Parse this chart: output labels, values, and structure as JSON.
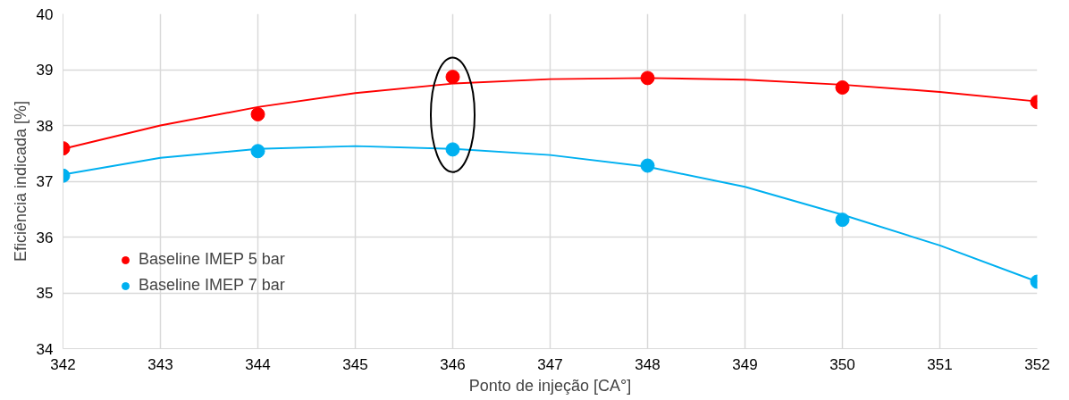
{
  "chart_data": {
    "type": "scatter",
    "xlabel": "Ponto de injeção [CA°]",
    "ylabel": "Eficiência indicada [%]",
    "xlim": [
      342,
      352
    ],
    "ylim": [
      34,
      40
    ],
    "xticks": [
      342,
      343,
      344,
      345,
      346,
      347,
      348,
      349,
      350,
      351,
      352
    ],
    "yticks": [
      34,
      35,
      36,
      37,
      38,
      39,
      40
    ],
    "grid": true,
    "legend": "bottom left",
    "series": [
      {
        "name": "Baseline IMEP 5 bar",
        "marker": "circle",
        "color": "#ff0000",
        "x": [
          342,
          344,
          346,
          348,
          350,
          352
        ],
        "values": [
          37.59,
          38.2,
          38.87,
          38.85,
          38.68,
          38.42
        ]
      },
      {
        "name": "Baseline IMEP 7 bar",
        "marker": "circle",
        "color": "#00b0f0",
        "x": [
          342,
          344,
          346,
          348,
          350,
          352
        ],
        "values": [
          37.1,
          37.54,
          37.57,
          37.28,
          36.31,
          35.2
        ]
      },
      {
        "type": "line",
        "marker": "none",
        "color": "#ff0000",
        "x": [
          342,
          343,
          344,
          345,
          346,
          347,
          348,
          349,
          350,
          351,
          352
        ],
        "values": [
          37.58,
          38.0,
          38.33,
          38.58,
          38.75,
          38.83,
          38.85,
          38.82,
          38.73,
          38.6,
          38.43
        ]
      },
      {
        "type": "line",
        "marker": "none",
        "color": "#00b0f0",
        "x": [
          342,
          343,
          344,
          345,
          346,
          347,
          348,
          349,
          350,
          351,
          352
        ],
        "values": [
          37.12,
          37.42,
          37.58,
          37.63,
          37.58,
          37.47,
          37.26,
          36.9,
          36.4,
          35.85,
          35.2
        ]
      }
    ]
  }
}
